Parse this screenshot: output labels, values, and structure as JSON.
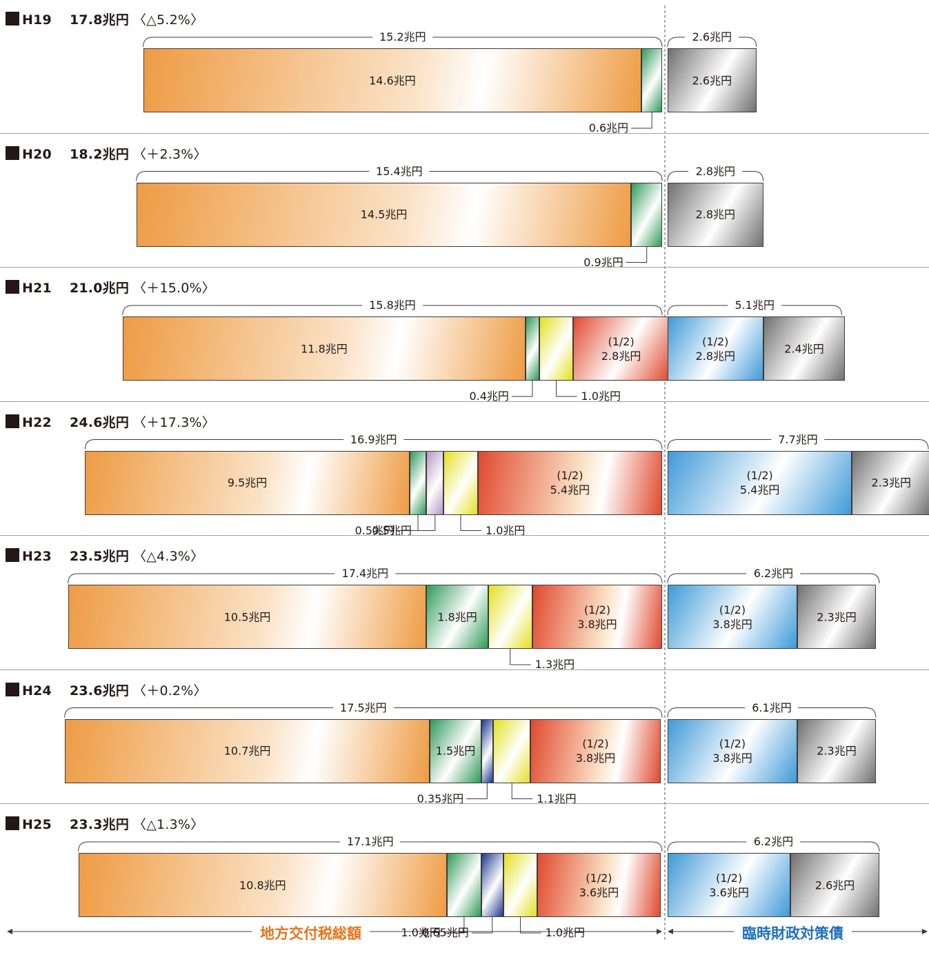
{
  "chart_data": {
    "type": "bar",
    "orientation": "horizontal-stacked",
    "unit": "兆円",
    "footer": {
      "left_label": "地方交付税総額",
      "right_label": "臨時財政対策債"
    },
    "colors": {
      "orange": "#ee9c44",
      "green": "#2f9a5a",
      "purple": "#b497c6",
      "yellow": "#e4df1f",
      "red": "#e04a2f",
      "navy": "#1e3a8f",
      "blue": "#3f9ad8",
      "gray": "#707070",
      "left_text": "#e8731a",
      "right_text": "#1f6fbf"
    },
    "years": [
      {
        "label": "H19",
        "total": "17.8兆円",
        "change": "〈△5.2%〉",
        "left_total": 15.2,
        "left_total_label": "15.2兆円",
        "right_total": 2.6,
        "right_total_label": "2.6兆円",
        "left_segments": [
          {
            "value": 14.6,
            "color": "orange",
            "label": "14.6兆円"
          },
          {
            "value": 0.6,
            "color": "green",
            "label": "0.6兆円",
            "callout": true
          }
        ],
        "right_segments": [
          {
            "value": 2.6,
            "color": "gray",
            "label": "2.6兆円"
          }
        ]
      },
      {
        "label": "H20",
        "total": "18.2兆円",
        "change": "〈＋2.3%〉",
        "left_total": 15.4,
        "left_total_label": "15.4兆円",
        "right_total": 2.8,
        "right_total_label": "2.8兆円",
        "left_segments": [
          {
            "value": 14.5,
            "color": "orange",
            "label": "14.5兆円"
          },
          {
            "value": 0.9,
            "color": "green",
            "label": "0.9兆円",
            "callout": true
          }
        ],
        "right_segments": [
          {
            "value": 2.8,
            "color": "gray",
            "label": "2.8兆円"
          }
        ]
      },
      {
        "label": "H21",
        "total": "21.0兆円",
        "change": "〈＋15.0%〉",
        "left_total": 15.8,
        "left_total_label": "15.8兆円",
        "right_total": 5.1,
        "right_total_label": "5.1兆円",
        "left_segments": [
          {
            "value": 11.8,
            "color": "orange",
            "label": "11.8兆円"
          },
          {
            "value": 0.4,
            "color": "green",
            "label": "0.4兆円",
            "callout": true
          },
          {
            "value": 1.0,
            "color": "yellow",
            "label": "1.0兆円",
            "callout": true
          },
          {
            "value": 2.8,
            "color": "red",
            "label": "(1/2)\n2.8兆円"
          }
        ],
        "right_segments": [
          {
            "value": 2.8,
            "color": "blue",
            "label": "(1/2)\n2.8兆円"
          },
          {
            "value": 2.4,
            "color": "gray",
            "label": "2.4兆円"
          }
        ]
      },
      {
        "label": "H22",
        "total": "24.6兆円",
        "change": "〈＋17.3%〉",
        "left_total": 16.9,
        "left_total_label": "16.9兆円",
        "right_total": 7.7,
        "right_total_label": "7.7兆円",
        "left_segments": [
          {
            "value": 9.5,
            "color": "orange",
            "label": "9.5兆円"
          },
          {
            "value": 0.5,
            "color": "green",
            "label": "0.5兆円",
            "callout": true
          },
          {
            "value": 0.5,
            "color": "purple",
            "label": "0.5兆円",
            "callout": true
          },
          {
            "value": 1.0,
            "color": "yellow",
            "label": "1.0兆円",
            "callout": true
          },
          {
            "value": 5.4,
            "color": "red",
            "label": "(1/2)\n5.4兆円"
          }
        ],
        "right_segments": [
          {
            "value": 5.4,
            "color": "blue",
            "label": "(1/2)\n5.4兆円"
          },
          {
            "value": 2.3,
            "color": "gray",
            "label": "2.3兆円"
          }
        ]
      },
      {
        "label": "H23",
        "total": "23.5兆円",
        "change": "〈△4.3%〉",
        "left_total": 17.4,
        "left_total_label": "17.4兆円",
        "right_total": 6.2,
        "right_total_label": "6.2兆円",
        "left_segments": [
          {
            "value": 10.5,
            "color": "orange",
            "label": "10.5兆円"
          },
          {
            "value": 1.8,
            "color": "green",
            "label": "1.8兆円"
          },
          {
            "value": 1.3,
            "color": "yellow",
            "label": "1.3兆円",
            "callout": true
          },
          {
            "value": 3.8,
            "color": "red",
            "label": "(1/2)\n3.8兆円"
          }
        ],
        "right_segments": [
          {
            "value": 3.8,
            "color": "blue",
            "label": "(1/2)\n3.8兆円"
          },
          {
            "value": 2.3,
            "color": "gray",
            "label": "2.3兆円"
          }
        ]
      },
      {
        "label": "H24",
        "total": "23.6兆円",
        "change": "〈＋0.2%〉",
        "left_total": 17.5,
        "left_total_label": "17.5兆円",
        "right_total": 6.1,
        "right_total_label": "6.1兆円",
        "left_segments": [
          {
            "value": 10.7,
            "color": "orange",
            "label": "10.7兆円"
          },
          {
            "value": 1.5,
            "color": "green",
            "label": "1.5兆円"
          },
          {
            "value": 0.35,
            "color": "navy",
            "label": "0.35兆円",
            "callout": true
          },
          {
            "value": 1.1,
            "color": "yellow",
            "label": "1.1兆円",
            "callout": true
          },
          {
            "value": 3.8,
            "color": "red",
            "label": "(1/2)\n3.8兆円"
          }
        ],
        "right_segments": [
          {
            "value": 3.8,
            "color": "blue",
            "label": "(1/2)\n3.8兆円"
          },
          {
            "value": 2.3,
            "color": "gray",
            "label": "2.3兆円"
          }
        ]
      },
      {
        "label": "H25",
        "total": "23.3兆円",
        "change": "〈△1.3%〉",
        "left_total": 17.1,
        "left_total_label": "17.1兆円",
        "right_total": 6.2,
        "right_total_label": "6.2兆円",
        "left_segments": [
          {
            "value": 10.8,
            "color": "orange",
            "label": "10.8兆円"
          },
          {
            "value": 1.0,
            "color": "green",
            "label": "1.0兆円",
            "callout": true
          },
          {
            "value": 0.65,
            "color": "navy",
            "label": "0.65兆円",
            "callout": true
          },
          {
            "value": 1.0,
            "color": "yellow",
            "label": "1.0兆円",
            "callout": true
          },
          {
            "value": 3.6,
            "color": "red",
            "label": "(1/2)\n3.6兆円"
          }
        ],
        "right_segments": [
          {
            "value": 3.6,
            "color": "blue",
            "label": "(1/2)\n3.6兆円"
          },
          {
            "value": 2.6,
            "color": "gray",
            "label": "2.6兆円"
          }
        ]
      }
    ]
  }
}
